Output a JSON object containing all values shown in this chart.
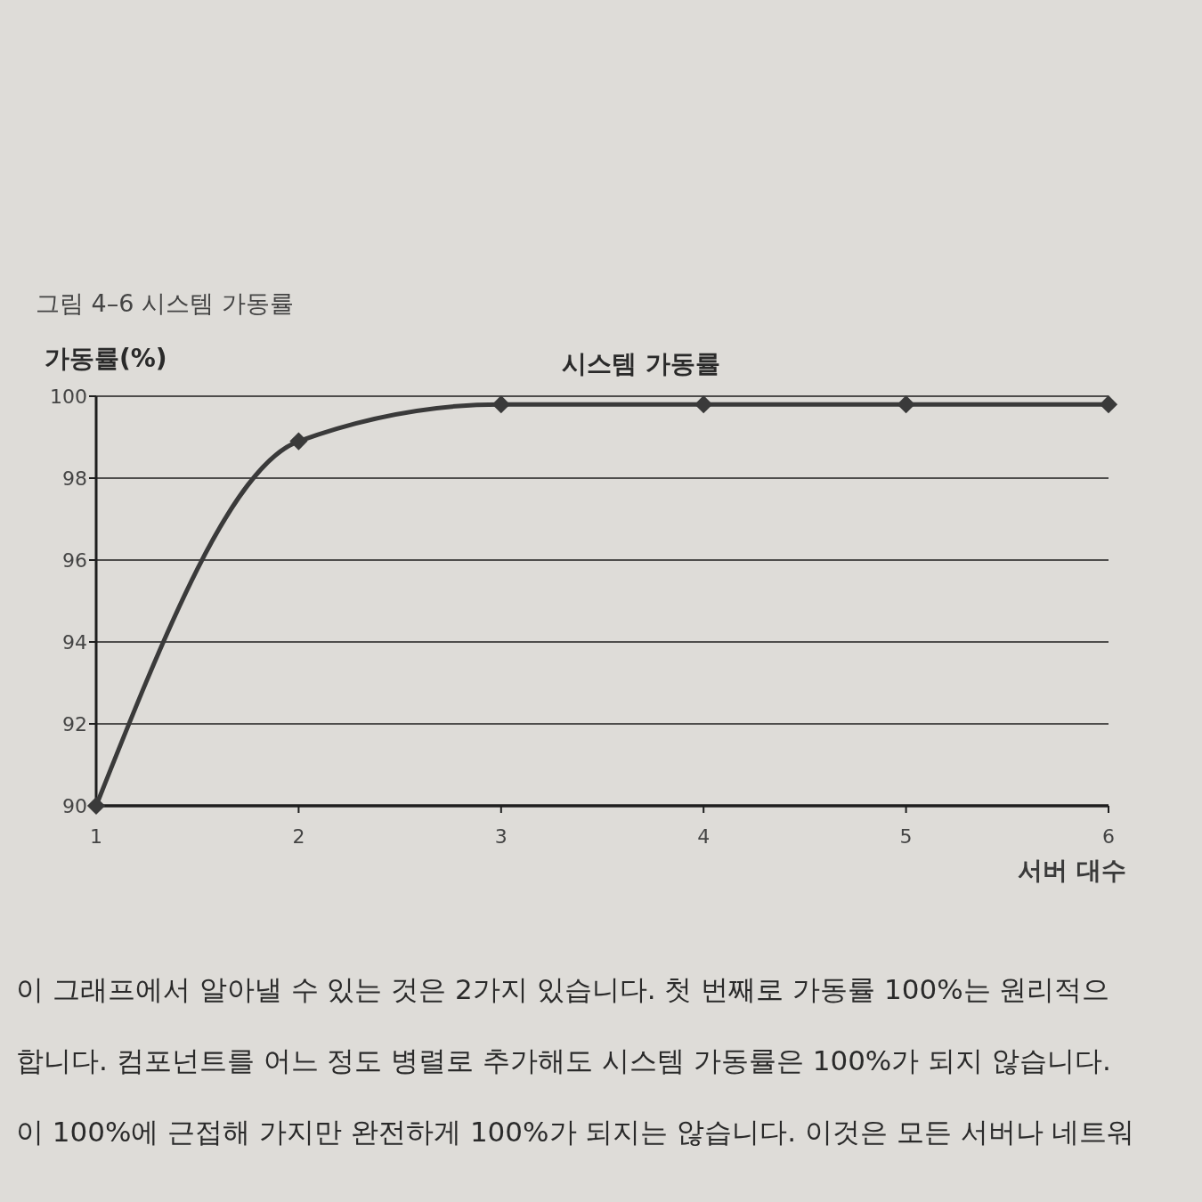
{
  "chart_data": {
    "type": "line",
    "title": "시스템 가동률",
    "xlabel": "서버 대수",
    "ylabel": "가동률(%)",
    "x": [
      1,
      2,
      3,
      4,
      5,
      6
    ],
    "series": [
      {
        "color": "#3a3a3a",
        "values": [
          90,
          98.9,
          99.8,
          99.8,
          99.8,
          99.8
        ]
      }
    ],
    "xlim": [
      1,
      6
    ],
    "xticks": [
      1,
      2,
      3,
      4,
      5,
      6
    ],
    "ylim": [
      90,
      100
    ],
    "yticks": [
      90,
      92,
      94,
      96,
      98,
      100
    ],
    "grid": "y",
    "marker": "diamond",
    "line_style": "solid",
    "annotations": [
      "그림 4–6 시스템 가동률",
      "이 그래프에서 알아낼 수 있는 것은 2가지 있습니다. 첫 번째로 가동률 100%는 원리적으",
      "합니다. 컴포넌트를 어느 정도 병렬로 추가해도 시스템 가동률은 100%가 되지 않습니다.",
      "이 100%에 근접해 가지만 완전하게 100%가 되지는 않습니다. 이것은 모든 서버나 네트워"
    ]
  }
}
